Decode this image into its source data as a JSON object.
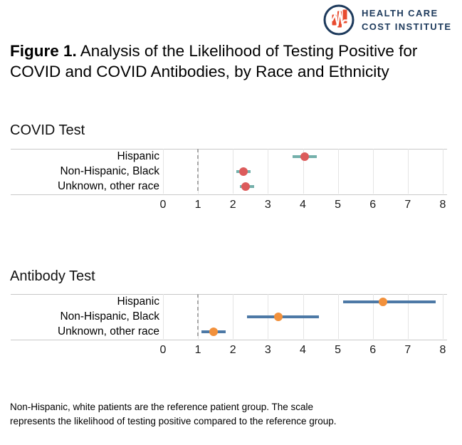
{
  "header": {
    "logo_line1": "HEALTH CARE",
    "logo_line2": "COST INSTITUTE",
    "logo_navy": "#1d3a5c",
    "logo_red": "#e84b2f",
    "logo_icon": "ekg-bars-icon"
  },
  "title": {
    "prefix": "Figure 1.",
    "text": "Analysis of the Likelihood of Testing Positive for COVID and COVID Antibodies, by Race and Ethnicity"
  },
  "chart_data": [
    {
      "type": "scatter",
      "title": "COVID Test",
      "orientation": "horizontal",
      "categories": [
        "Hispanic",
        "Non-Hispanic, Black",
        "Unknown, other race"
      ],
      "series": [
        {
          "name": "Likelihood of testing positive vs reference group",
          "values": [
            4.05,
            2.3,
            2.37
          ],
          "ci_low": [
            3.7,
            2.1,
            2.2
          ],
          "ci_high": [
            4.4,
            2.5,
            2.6
          ]
        }
      ],
      "xlim": [
        0,
        8
      ],
      "xticks": [
        "0",
        "1",
        "2",
        "3",
        "4",
        "5",
        "6",
        "7",
        "8"
      ],
      "reference_line_x": 1,
      "grid": true,
      "legend": "none",
      "dot_color": "#dc5b5b",
      "bar_color": "#74b0ab"
    },
    {
      "type": "scatter",
      "title": "Antibody Test",
      "orientation": "horizontal",
      "categories": [
        "Hispanic",
        "Non-Hispanic, Black",
        "Unknown, other race"
      ],
      "series": [
        {
          "name": "Likelihood of testing positive vs reference group",
          "values": [
            6.3,
            3.3,
            1.45
          ],
          "ci_low": [
            5.15,
            2.4,
            1.1
          ],
          "ci_high": [
            7.8,
            4.45,
            1.8
          ]
        }
      ],
      "xlim": [
        0,
        8
      ],
      "xticks": [
        "0",
        "1",
        "2",
        "3",
        "4",
        "5",
        "6",
        "7",
        "8"
      ],
      "reference_line_x": 1,
      "grid": true,
      "legend": "none",
      "dot_color": "#f2913c",
      "bar_color": "#4d79a6"
    }
  ],
  "footnote": {
    "text": "Non-Hispanic, white patients are the reference patient group. The scale represents the likelihood of testing positive compared to the reference group."
  }
}
